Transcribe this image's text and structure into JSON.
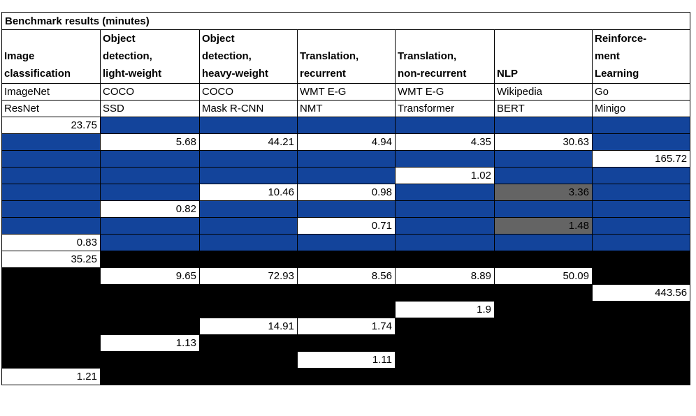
{
  "title": "Benchmark results (minutes)",
  "header": {
    "categories": [
      "Image\nclassification",
      "Object\ndetection,\nlight-weight",
      "Object\ndetection,\nheavy-weight",
      "Translation,\nrecurrent",
      "Translation,\nnon-recurrent",
      "NLP",
      "Reinforce-\nment\nLearning"
    ],
    "datasets": [
      "ImageNet",
      "COCO",
      "COCO",
      "WMT E-G",
      "WMT E-G",
      "Wikipedia",
      "Go"
    ],
    "models": [
      "ResNet",
      "SSD",
      "Mask R-CNN",
      "NMT",
      "Transformer",
      "BERT",
      "Minigo"
    ]
  },
  "colors": {
    "section_blue": "#13449B",
    "section_black": "#000000",
    "highlight_gray": "#646464",
    "cell_white": "#FFFFFF",
    "grid_border": "#000000",
    "text": "#000000"
  },
  "chart_data": {
    "type": "table",
    "title": "Benchmark results (minutes)",
    "units": "minutes",
    "columns": [
      "Image classification",
      "Object detection, light-weight",
      "Object detection, heavy-weight",
      "Translation, recurrent",
      "Translation, non-recurrent",
      "NLP",
      "Reinforcement Learning"
    ],
    "datasets": [
      "ImageNet",
      "COCO",
      "COCO",
      "WMT E-G",
      "WMT E-G",
      "Wikipedia",
      "Go"
    ],
    "models": [
      "ResNet",
      "SSD",
      "Mask R-CNN",
      "NMT",
      "Transformer",
      "BERT",
      "Minigo"
    ],
    "rows": [
      {
        "section": "blue",
        "values": [
          23.75,
          null,
          null,
          null,
          null,
          null,
          null
        ]
      },
      {
        "section": "blue",
        "values": [
          null,
          5.68,
          44.21,
          4.94,
          4.35,
          30.63,
          null
        ]
      },
      {
        "section": "blue",
        "values": [
          null,
          null,
          null,
          null,
          null,
          null,
          165.72
        ]
      },
      {
        "section": "blue",
        "values": [
          null,
          null,
          null,
          null,
          1.02,
          null,
          null
        ]
      },
      {
        "section": "blue",
        "values": [
          null,
          null,
          10.46,
          0.98,
          null,
          3.36,
          null
        ]
      },
      {
        "section": "blue",
        "values": [
          null,
          0.82,
          null,
          null,
          null,
          null,
          null
        ]
      },
      {
        "section": "blue",
        "values": [
          null,
          null,
          null,
          0.71,
          null,
          1.48,
          null
        ]
      },
      {
        "section": "blue",
        "values": [
          0.83,
          null,
          null,
          null,
          null,
          null,
          null
        ]
      },
      {
        "section": "black",
        "values": [
          35.25,
          null,
          null,
          null,
          null,
          null,
          null
        ]
      },
      {
        "section": "black",
        "values": [
          null,
          9.65,
          72.93,
          8.56,
          8.89,
          50.09,
          null
        ]
      },
      {
        "section": "black",
        "values": [
          null,
          null,
          null,
          null,
          null,
          null,
          443.56
        ]
      },
      {
        "section": "black",
        "values": [
          null,
          null,
          null,
          null,
          1.9,
          null,
          null
        ]
      },
      {
        "section": "black",
        "values": [
          null,
          null,
          14.91,
          1.74,
          null,
          null,
          null
        ]
      },
      {
        "section": "black",
        "values": [
          null,
          1.13,
          null,
          null,
          null,
          null,
          null
        ]
      },
      {
        "section": "black",
        "values": [
          null,
          null,
          null,
          1.11,
          null,
          null,
          null
        ]
      },
      {
        "section": "black",
        "values": [
          1.21,
          null,
          null,
          null,
          null,
          null,
          null
        ]
      }
    ],
    "gray_highlight_cells": [
      [
        4,
        5
      ],
      [
        6,
        5
      ]
    ]
  }
}
